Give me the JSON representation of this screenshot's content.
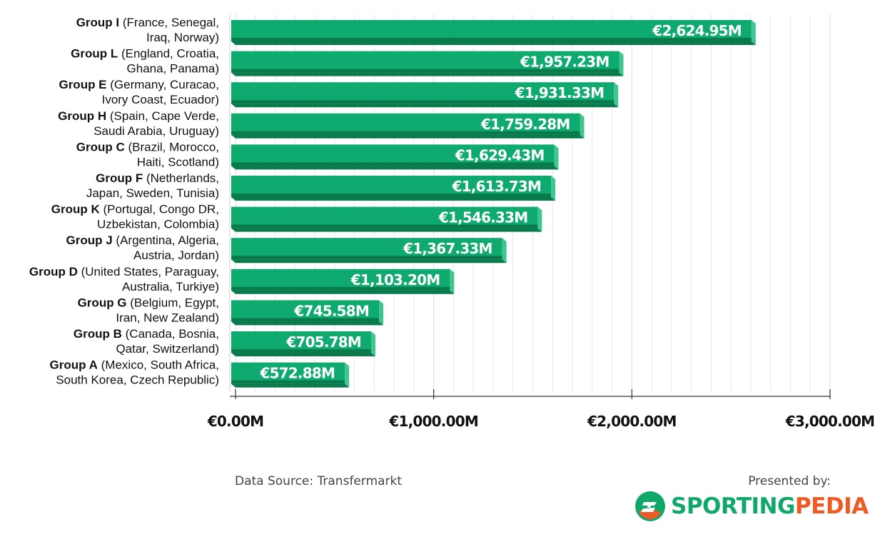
{
  "chart_data": {
    "type": "bar",
    "orientation": "horizontal",
    "categories": [
      {
        "group": "Group I",
        "teams": "(France, Senegal,",
        "teams2": "Iraq, Norway)"
      },
      {
        "group": "Group L",
        "teams": "(England, Croatia,",
        "teams2": "Ghana, Panama)"
      },
      {
        "group": "Group E",
        "teams": "(Germany, Curacao,",
        "teams2": "Ivory Coast, Ecuador)"
      },
      {
        "group": "Group H",
        "teams": "(Spain, Cape Verde,",
        "teams2": "Saudi Arabia, Uruguay)"
      },
      {
        "group": "Group C",
        "teams": "(Brazil, Morocco,",
        "teams2": "Haiti, Scotland)"
      },
      {
        "group": "Group F",
        "teams": "(Netherlands,",
        "teams2": "Japan, Sweden, Tunisia)"
      },
      {
        "group": "Group K",
        "teams": "(Portugal, Congo DR,",
        "teams2": "Uzbekistan, Colombia)"
      },
      {
        "group": "Group J",
        "teams": "(Argentina, Algeria,",
        "teams2": "Austria, Jordan)"
      },
      {
        "group": "Group D",
        "teams": "(United States, Paraguay,",
        "teams2": "Australia, Turkiye)"
      },
      {
        "group": "Group G",
        "teams": "(Belgium, Egypt,",
        "teams2": "Iran, New Zealand)"
      },
      {
        "group": "Group B",
        "teams": "(Canada, Bosnia,",
        "teams2": "Qatar, Switzerland)"
      },
      {
        "group": "Group A",
        "teams": "(Mexico, South Africa,",
        "teams2": "South Korea, Czech Republic)"
      }
    ],
    "values": [
      2624.95,
      1957.23,
      1931.33,
      1759.28,
      1629.43,
      1613.73,
      1546.33,
      1367.33,
      1103.2,
      745.58,
      705.78,
      572.88
    ],
    "data_labels": [
      "€2,624.95M",
      "€1,957.23M",
      "€1,931.33M",
      "€1,759.28M",
      "€1,629.43M",
      "€1,613.73M",
      "€1,546.33M",
      "€1,367.33M",
      "€1,103.20M",
      "€745.58M",
      "€705.78M",
      "€572.88M"
    ],
    "x_ticks": [
      0,
      1000,
      2000,
      3000
    ],
    "x_tick_labels": [
      "€0.00M",
      "€1,000.00M",
      "€2,000.00M",
      "€3,000.00M"
    ],
    "xlim": [
      0,
      3000
    ],
    "grid": true,
    "colors": {
      "bar": "#0eaa6f",
      "bar_dark": "#087a4c",
      "bar_top": "#3ec68e",
      "grid": "#e2e2e2",
      "axis": "#333333"
    }
  },
  "footer": {
    "source": "Data Source: Transfermarkt",
    "presented": "Presented by:",
    "brand_part1": "SPORTING",
    "brand_part2": "PEDIA"
  },
  "brand_colors": {
    "green": "#0fa86a",
    "orange": "#ef5a24"
  }
}
